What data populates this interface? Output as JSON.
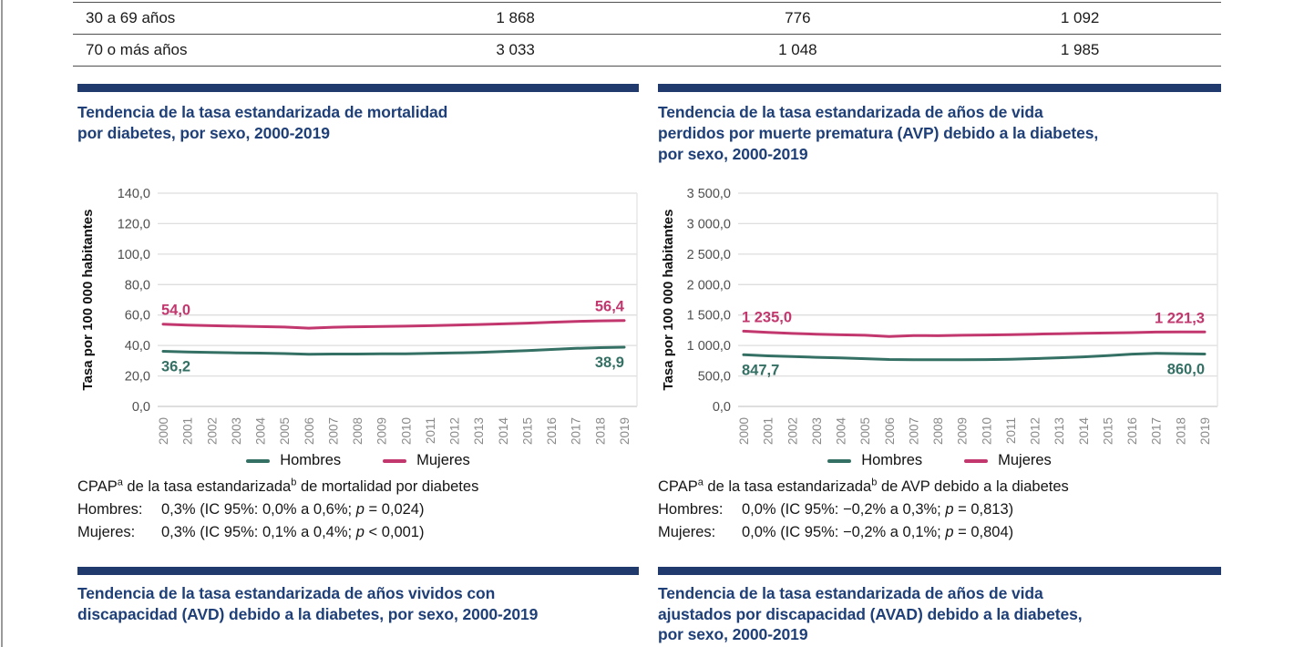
{
  "colors": {
    "navy_bar": "#203a6d",
    "navy_title": "#1e3f77",
    "hombres": "#357065",
    "mujeres": "#c2386e",
    "grid": "#dedede",
    "baseline": "#c9c9c9",
    "y_tick_text": "#4f4f4f",
    "x_tick_text": "#8a8a8a"
  },
  "table": {
    "rows": [
      {
        "label": "30 a 69 años",
        "values": [
          "1 868",
          "776",
          "1 092"
        ]
      },
      {
        "label": "70 o más años",
        "values": [
          "3 033",
          "1 048",
          "1 985"
        ]
      }
    ]
  },
  "panels": [
    {
      "id": "mortalidad",
      "title_lines": [
        "Tendencia de la tasa estandarizada de mortalidad",
        "por diabetes, por sexo, 2000-2019",
        ""
      ],
      "cpap": {
        "heading": {
          "prefix": "CPAP",
          "sup_a": "a",
          "mid": " de la tasa estandarizada",
          "sup_b": "b",
          "suffix": " de mortalidad por diabetes"
        },
        "rows": [
          {
            "label": "Hombres:",
            "ci": "0,3% (IC 95%: 0,0% a 0,6%; ",
            "p": "p",
            "tail": " = 0,024)"
          },
          {
            "label": "Mujeres:",
            "ci": "0,3% (IC 95%: 0,1% a 0,4%; ",
            "p": "p",
            "tail": " < 0,001)"
          }
        ]
      }
    },
    {
      "id": "avp",
      "title_lines": [
        "Tendencia de la tasa estandarizada de años de vida",
        "perdidos por muerte prematura (AVP) debido a la diabetes,",
        "por sexo, 2000-2019"
      ],
      "cpap": {
        "heading": {
          "prefix": "CPAP",
          "sup_a": "a",
          "mid": " de la tasa estandarizada",
          "sup_b": "b",
          "suffix": " de AVP debido a la diabetes"
        },
        "rows": [
          {
            "label": "Hombres:",
            "ci": "0,0% (IC 95%: −0,2% a 0,3%; ",
            "p": "p",
            "tail": " = 0,813)"
          },
          {
            "label": "Mujeres:",
            "ci": "0,0% (IC 95%: −0,2% a 0,1%; ",
            "p": "p",
            "tail": " = 0,804)"
          }
        ]
      }
    },
    {
      "id": "avd",
      "title_lines": [
        "Tendencia de la tasa estandarizada de años vividos con",
        "discapacidad (AVD) debido a la diabetes, por sexo, 2000-2019",
        ""
      ]
    },
    {
      "id": "avad",
      "title_lines": [
        "Tendencia de la tasa estandarizada de años de vida",
        "ajustados por discapacidad (AVAD) debido a la diabetes,",
        "por sexo, 2000-2019"
      ]
    }
  ],
  "chart_data": [
    {
      "type": "line",
      "name": "mortalidad",
      "title": "Tendencia de la tasa estandarizada de mortalidad por diabetes, por sexo, 2000-2019",
      "xlabel": "",
      "ylabel": "Tasa por 100 000 habitantes",
      "x": [
        2000,
        2001,
        2002,
        2003,
        2004,
        2005,
        2006,
        2007,
        2008,
        2009,
        2010,
        2011,
        2012,
        2013,
        2014,
        2015,
        2016,
        2017,
        2018,
        2019
      ],
      "ylim": [
        0,
        140
      ],
      "ytick_values": [
        0,
        20,
        40,
        60,
        80,
        100,
        120,
        140
      ],
      "ytick_labels": [
        "0,0",
        "20,0",
        "40,0",
        "60,0",
        "80,0",
        "100,0",
        "120,0",
        "140,0"
      ],
      "grid": true,
      "legend_position": "bottom",
      "series": [
        {
          "name": "Hombres",
          "color": "#357065",
          "label_side": "below",
          "start_label": "36,2",
          "end_label": "38,9",
          "values": [
            36.2,
            35.8,
            35.5,
            35.2,
            35.0,
            34.7,
            34.3,
            34.4,
            34.4,
            34.5,
            34.6,
            34.8,
            35.1,
            35.5,
            36.0,
            36.6,
            37.4,
            38.1,
            38.6,
            38.9
          ]
        },
        {
          "name": "Mujeres",
          "color": "#c2386e",
          "label_side": "above",
          "start_label": "54,0",
          "end_label": "56,4",
          "values": [
            54.0,
            53.4,
            53.0,
            52.7,
            52.4,
            52.1,
            51.4,
            52.0,
            52.3,
            52.5,
            52.7,
            53.0,
            53.4,
            53.8,
            54.2,
            54.7,
            55.3,
            55.8,
            56.2,
            56.4
          ]
        }
      ]
    },
    {
      "type": "line",
      "name": "avp",
      "title": "Tendencia de la tasa estandarizada de años de vida perdidos por muerte prematura (AVP) debido a la diabetes, por sexo, 2000-2019",
      "xlabel": "",
      "ylabel": "Tasa por 100 000 habitantes",
      "x": [
        2000,
        2001,
        2002,
        2003,
        2004,
        2005,
        2006,
        2007,
        2008,
        2009,
        2010,
        2011,
        2012,
        2013,
        2014,
        2015,
        2016,
        2017,
        2018,
        2019
      ],
      "ylim": [
        0,
        3500
      ],
      "ytick_values": [
        0,
        500,
        1000,
        1500,
        2000,
        2500,
        3000,
        3500
      ],
      "ytick_labels": [
        "0,0",
        "500,0",
        "1 000,0",
        "1 500,0",
        "2 000,0",
        "2 500,0",
        "3 000,0",
        "3 500,0"
      ],
      "grid": true,
      "legend_position": "bottom",
      "series": [
        {
          "name": "Hombres",
          "color": "#357065",
          "label_side": "below",
          "start_label": "847,7",
          "end_label": "860,0",
          "values": [
            847.7,
            830,
            818,
            806,
            795,
            784,
            770,
            768,
            766,
            766,
            769,
            775,
            786,
            799,
            814,
            833,
            858,
            872,
            866,
            860.0
          ]
        },
        {
          "name": "Mujeres",
          "color": "#c2386e",
          "label_side": "above",
          "start_label": "1 235,0",
          "end_label": "1 221,3",
          "values": [
            1235.0,
            1214,
            1198,
            1186,
            1176,
            1168,
            1148,
            1164,
            1160,
            1168,
            1172,
            1178,
            1186,
            1194,
            1200,
            1206,
            1212,
            1220,
            1222,
            1221.3
          ]
        }
      ]
    }
  ]
}
